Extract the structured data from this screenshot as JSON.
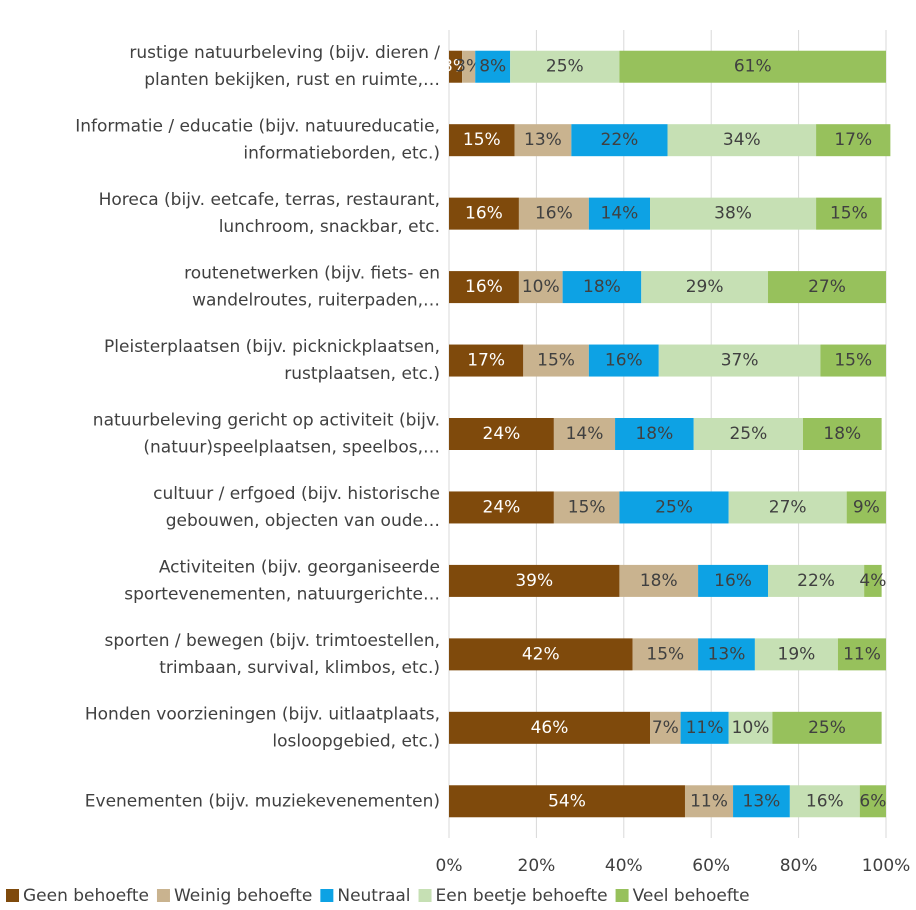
{
  "chart_data": {
    "type": "stacked_barh",
    "categories": [
      "rustige natuurbeleving (bijv. dieren /\nplanten bekijken, rust en ruimte,…",
      "Informatie / educatie (bijv. natuureducatie,\ninformatieborden, etc.)",
      "Horeca (bijv. eetcafe, terras, restaurant,\nlunchroom, snackbar, etc.",
      "routenetwerken (bijv. fiets- en\nwandelroutes, ruiterpaden,…",
      "Pleisterplaatsen (bijv. picknickplaatsen,\nrustplaatsen, etc.)",
      "natuurbeleving gericht op activiteit (bijv.\n(natuur)speelplaatsen,  speelbos,…",
      "cultuur / erfgoed (bijv. historische\ngebouwen, objecten van oude…",
      "Activiteiten (bijv. georganiseerde\nsportevenementen, natuurgerichte…",
      "sporten / bewegen (bijv. trimtoestellen,\ntrimbaan, survival, klimbos, etc.)",
      "Honden voorzieningen (bijv. uitlaatplaats,\nlosloopgebied, etc.)",
      "Evenementen (bijv. muziekevenementen)"
    ],
    "series": [
      {
        "name": "Geen behoefte",
        "color": "#7f4a0c",
        "values": [
          3,
          15,
          16,
          16,
          17,
          24,
          24,
          39,
          42,
          46,
          54
        ],
        "value_labels": [
          "3%",
          "15%",
          "16%",
          "16%",
          "17%",
          "24%",
          "24%",
          "39%",
          "42%",
          "46%",
          "54%"
        ]
      },
      {
        "name": "Weinig behoefte",
        "color": "#c9b38f",
        "values": [
          3,
          13,
          16,
          10,
          15,
          14,
          15,
          18,
          15,
          7,
          11
        ],
        "value_labels": [
          "3%",
          "13%",
          "16%",
          "10%",
          "15%",
          "14%",
          "15%",
          "18%",
          "15%",
          "7%",
          "11%"
        ]
      },
      {
        "name": "Neutraal",
        "color": "#0da2e4",
        "values": [
          8,
          22,
          14,
          18,
          16,
          18,
          25,
          16,
          13,
          11,
          13
        ],
        "value_labels": [
          "8%",
          "22%",
          "14%",
          "18%",
          "16%",
          "18%",
          "25%",
          "16%",
          "13%",
          "11%",
          "13%"
        ]
      },
      {
        "name": "Een beetje behoefte",
        "color": "#c6e0b4",
        "values": [
          25,
          34,
          38,
          29,
          37,
          25,
          27,
          22,
          19,
          10,
          16
        ],
        "value_labels": [
          "25%",
          "34%",
          "38%",
          "29%",
          "37%",
          "25%",
          "27%",
          "22%",
          "19%",
          "10%",
          "16%"
        ]
      },
      {
        "name": "Veel behoefte",
        "color": "#97c15c",
        "values": [
          61,
          17,
          15,
          27,
          15,
          18,
          9,
          4,
          11,
          25,
          6
        ],
        "value_labels": [
          "61%",
          "17%",
          "15%",
          "27%",
          "15%",
          "18%",
          "9%",
          "4%",
          "11%",
          "25%",
          "6%"
        ]
      }
    ],
    "xlim": [
      0,
      100
    ],
    "xticks": [
      {
        "value": 0,
        "label": "0%"
      },
      {
        "value": 20,
        "label": "20%"
      },
      {
        "value": 40,
        "label": "40%"
      },
      {
        "value": 60,
        "label": "60%"
      },
      {
        "value": 80,
        "label": "80%"
      },
      {
        "value": 100,
        "label": "100%"
      }
    ],
    "grid": true,
    "legend": "bottom"
  }
}
